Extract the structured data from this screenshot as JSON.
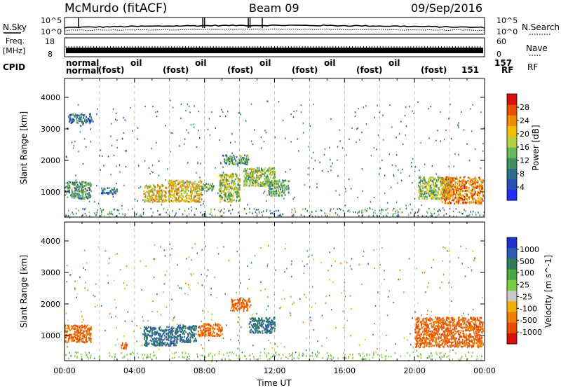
{
  "header": {
    "station": "McMurdo (fitACF)",
    "beam": "Beam 09",
    "date": "09/Sep/2016"
  },
  "left_labels": {
    "nsky": "N.Sky",
    "freq_line1": "Freq.",
    "freq_line2": "[MHz]",
    "cpid": "CPID"
  },
  "right_labels": {
    "nsearch": "N.Search",
    "nave": "Nave",
    "rf": "RF"
  },
  "noise_panel": {
    "y_ticks": [
      "10^5",
      "10^0"
    ],
    "right_ticks": [
      "10^5",
      "10^0"
    ]
  },
  "freq_panel": {
    "y_ticks": [
      "18",
      "8"
    ],
    "right_ticks": [
      "60",
      "0"
    ]
  },
  "cpid_panel": {
    "normal_label": "normal",
    "program_labels": [
      "(fost)",
      "oil",
      "(fost)",
      "oil",
      "(fost)",
      "oil",
      "(fost)",
      "oil",
      "(fost)",
      "oil",
      "(fost)"
    ],
    "tail_labels": [
      "157",
      "151",
      "RF"
    ]
  },
  "chart_data": [
    {
      "type": "heatmap",
      "name": "power",
      "xlabel": "",
      "ylabel": "Slant Range [km]",
      "x_ticks": [
        "00:00",
        "04:00",
        "08:00",
        "12:00",
        "16:00",
        "20:00",
        "00:00"
      ],
      "y_ticks": [
        1000,
        2000,
        3000,
        4000
      ],
      "xlim": [
        0,
        24
      ],
      "ylim": [
        200,
        4600
      ],
      "colorbar": {
        "label": "Power [dB]",
        "ticks": [
          4,
          8,
          12,
          16,
          20,
          24,
          28
        ],
        "range": [
          0,
          32
        ],
        "colors": [
          "#1e2cff",
          "#2a4fb8",
          "#2d6f8a",
          "#3f8f5f",
          "#68b85a",
          "#b8d040",
          "#f0c000",
          "#f08a00",
          "#e85000",
          "#d81010"
        ]
      },
      "regions": [
        {
          "t": [
            0.0,
            1.5
          ],
          "r": [
            800,
            1350
          ],
          "level": 12
        },
        {
          "t": [
            0.2,
            1.6
          ],
          "r": [
            3200,
            3500
          ],
          "level": 8
        },
        {
          "t": [
            2.0,
            3.0
          ],
          "r": [
            950,
            1150
          ],
          "level": 8
        },
        {
          "t": [
            4.5,
            5.8
          ],
          "r": [
            700,
            1250
          ],
          "level": 20
        },
        {
          "t": [
            5.9,
            7.8
          ],
          "r": [
            700,
            1400
          ],
          "level": 20
        },
        {
          "t": [
            7.8,
            8.5
          ],
          "r": [
            1050,
            1300
          ],
          "level": 14
        },
        {
          "t": [
            8.8,
            10.0
          ],
          "r": [
            700,
            1600
          ],
          "level": 16
        },
        {
          "t": [
            9.0,
            10.5
          ],
          "r": [
            1900,
            2200
          ],
          "level": 12
        },
        {
          "t": [
            10.2,
            12.0
          ],
          "r": [
            1200,
            1800
          ],
          "level": 16
        },
        {
          "t": [
            11.5,
            12.8
          ],
          "r": [
            900,
            1400
          ],
          "level": 12
        },
        {
          "t": [
            20.2,
            22.0
          ],
          "r": [
            800,
            1500
          ],
          "level": 16
        },
        {
          "t": [
            21.5,
            23.9
          ],
          "r": [
            650,
            1500
          ],
          "level": 24
        }
      ]
    },
    {
      "type": "heatmap",
      "name": "velocity",
      "xlabel": "Time UT",
      "ylabel": "Slant Range [km]",
      "x_ticks": [
        "00:00",
        "04:00",
        "08:00",
        "12:00",
        "16:00",
        "20:00",
        "00:00"
      ],
      "y_ticks": [
        1000,
        2000,
        3000,
        4000
      ],
      "xlim": [
        0,
        24
      ],
      "ylim": [
        200,
        4600
      ],
      "colorbar": {
        "label": "Velocity [m s^-1]",
        "ticks": [
          "1000",
          "500",
          "100",
          "25",
          "-25",
          "-100",
          "-500",
          "-1000"
        ],
        "colors": [
          "#1f2fd0",
          "#2d5db0",
          "#2e7c5a",
          "#49a840",
          "#7ccc40",
          "#c8c8c8",
          "#f0b000",
          "#f07c00",
          "#e84a00",
          "#d81010"
        ]
      },
      "regions": [
        {
          "t": [
            0.0,
            1.5
          ],
          "r": [
            800,
            1350
          ],
          "level": -300
        },
        {
          "t": [
            3.2,
            3.6
          ],
          "r": [
            600,
            800
          ],
          "level": -300
        },
        {
          "t": [
            4.5,
            6.4
          ],
          "r": [
            700,
            1300
          ],
          "level": 300
        },
        {
          "t": [
            6.4,
            7.5
          ],
          "r": [
            800,
            1350
          ],
          "level": 300
        },
        {
          "t": [
            7.6,
            9.0
          ],
          "r": [
            1000,
            1400
          ],
          "level": -300
        },
        {
          "t": [
            9.5,
            10.6
          ],
          "r": [
            1800,
            2200
          ],
          "level": -300
        },
        {
          "t": [
            10.5,
            12.0
          ],
          "r": [
            1100,
            1600
          ],
          "level": 300
        },
        {
          "t": [
            20.0,
            23.9
          ],
          "r": [
            650,
            1600
          ],
          "level": -300
        }
      ]
    }
  ]
}
